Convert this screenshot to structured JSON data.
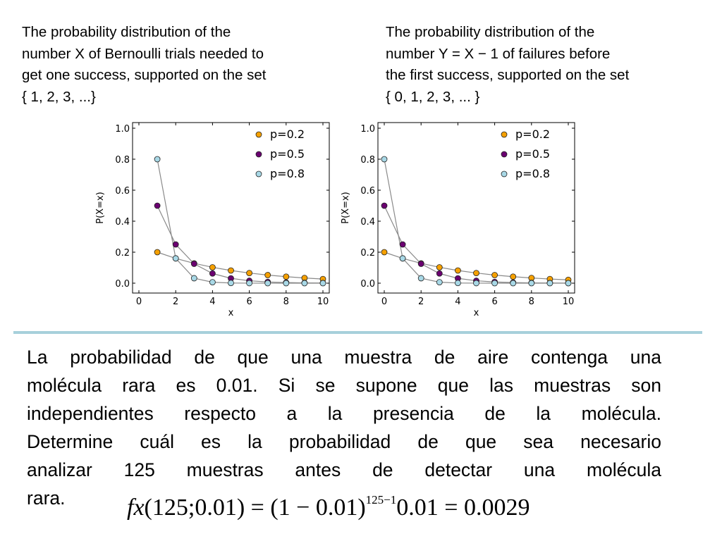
{
  "captions": {
    "left": [
      "The probability distribution of the",
      "number X of Bernoulli trials needed to",
      "get one success, supported on the set",
      "{ 1, 2, 3, ...}"
    ],
    "right": [
      "The probability distribution of the",
      "number Y = X − 1 of failures before",
      "the first success, supported on the set",
      "{ 0, 1, 2, 3, ... }"
    ]
  },
  "problem": {
    "lines": [
      "La probabilidad de que una muestra de aire contenga una",
      "molécula rara es 0.01. Si se supone que las muestras son",
      "independientes respecto a la presencia de la molécula.",
      "Determine cuál es la probabilidad de que sea necesario",
      "analizar 125 muestras antes de detectar una molécula",
      "rara."
    ]
  },
  "formula": {
    "func": "fx",
    "args": "(125;0.01)",
    "eq1": " = ",
    "base": "(1 − 0.01)",
    "exponent": "125−1",
    "factor": "0.01",
    "eq2": " = ",
    "result": "0.0029"
  },
  "colors": {
    "p02": "#f5a000",
    "p05": "#6a0070",
    "p08": "#a8d8e6",
    "divider": "#a7d0db",
    "connector": "#888888"
  },
  "chart_data": [
    {
      "type": "scatter",
      "xlabel": "x",
      "ylabel": "P(X=x)",
      "xlim": [
        0,
        10
      ],
      "ylim": [
        0,
        1.0
      ],
      "xticks": [
        "0",
        "2",
        "4",
        "6",
        "8",
        "10"
      ],
      "yticks": [
        "0.0",
        "0.2",
        "0.4",
        "0.6",
        "0.8",
        "1.0"
      ],
      "grid": false,
      "legend": "top-right",
      "lines_connect_points": true,
      "series": [
        {
          "name": "p=0.2",
          "color": "#f5a000",
          "x": [
            1,
            2,
            3,
            4,
            5,
            6,
            7,
            8,
            9,
            10
          ],
          "y": [
            0.2,
            0.16,
            0.128,
            0.1024,
            0.0819,
            0.0655,
            0.0524,
            0.0419,
            0.0336,
            0.0268
          ]
        },
        {
          "name": "p=0.5",
          "color": "#6a0070",
          "x": [
            1,
            2,
            3,
            4,
            5,
            6,
            7,
            8,
            9,
            10
          ],
          "y": [
            0.5,
            0.25,
            0.125,
            0.0625,
            0.03125,
            0.0156,
            0.0078,
            0.0039,
            0.002,
            0.001
          ]
        },
        {
          "name": "p=0.8",
          "color": "#a8d8e6",
          "x": [
            1,
            2,
            3,
            4,
            5,
            6,
            7,
            8,
            9,
            10
          ],
          "y": [
            0.8,
            0.16,
            0.032,
            0.0064,
            0.0013,
            0.0003,
            0.0001,
            0.0,
            0.0,
            0.0
          ]
        }
      ]
    },
    {
      "type": "scatter",
      "xlabel": "x",
      "ylabel": "P(X=x)",
      "xlim": [
        0,
        10
      ],
      "ylim": [
        0,
        1.0
      ],
      "xticks": [
        "0",
        "2",
        "4",
        "6",
        "8",
        "10"
      ],
      "yticks": [
        "0.0",
        "0.2",
        "0.4",
        "0.6",
        "0.8",
        "1.0"
      ],
      "grid": false,
      "legend": "top-right",
      "lines_connect_points": true,
      "series": [
        {
          "name": "p=0.2",
          "color": "#f5a000",
          "x": [
            0,
            1,
            2,
            3,
            4,
            5,
            6,
            7,
            8,
            9,
            10
          ],
          "y": [
            0.2,
            0.16,
            0.128,
            0.1024,
            0.0819,
            0.0655,
            0.0524,
            0.0419,
            0.0336,
            0.0268,
            0.0215
          ]
        },
        {
          "name": "p=0.5",
          "color": "#6a0070",
          "x": [
            0,
            1,
            2,
            3,
            4,
            5,
            6,
            7,
            8,
            9,
            10
          ],
          "y": [
            0.5,
            0.25,
            0.125,
            0.0625,
            0.03125,
            0.0156,
            0.0078,
            0.0039,
            0.002,
            0.001,
            0.0005
          ]
        },
        {
          "name": "p=0.8",
          "color": "#a8d8e6",
          "x": [
            0,
            1,
            2,
            3,
            4,
            5,
            6,
            7,
            8,
            9,
            10
          ],
          "y": [
            0.8,
            0.16,
            0.032,
            0.0064,
            0.0013,
            0.0003,
            0.0001,
            0.0,
            0.0,
            0.0,
            0.0
          ]
        }
      ]
    }
  ]
}
